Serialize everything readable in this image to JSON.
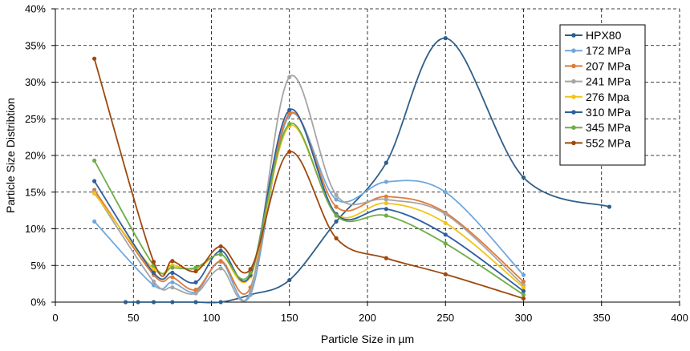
{
  "chart_data": {
    "type": "line",
    "title": "",
    "xlabel": "Particle Size in µm",
    "ylabel": "Particle Size Distribtion",
    "xlim": [
      0,
      400
    ],
    "ylim": [
      0,
      0.4
    ],
    "x_ticks": [
      0,
      50,
      100,
      150,
      200,
      250,
      300,
      350,
      400
    ],
    "x_tick_labels": [
      "0",
      "50",
      "100",
      "150",
      "200",
      "250",
      "300",
      "350",
      "400"
    ],
    "y_ticks": [
      0,
      0.05,
      0.1,
      0.15,
      0.2,
      0.25,
      0.3,
      0.35,
      0.4
    ],
    "y_tick_labels": [
      "0%",
      "5%",
      "10%",
      "15%",
      "20%",
      "25%",
      "30%",
      "35%",
      "40%"
    ],
    "grid": true,
    "legend_position": "top-right",
    "series": [
      {
        "name": "HPX80",
        "color": "#2e5f8a",
        "x": [
          45,
          53,
          63,
          75,
          90,
          106,
          125,
          150,
          180,
          212,
          250,
          300,
          355
        ],
        "y": [
          0,
          0,
          0,
          0,
          0,
          0,
          0.01,
          0.03,
          0.11,
          0.19,
          0.36,
          0.17,
          0.13
        ]
      },
      {
        "name": "172 MPa",
        "color": "#6fa8dc",
        "x": [
          25,
          63,
          75,
          90,
          106,
          125,
          150,
          180,
          212,
          250,
          300
        ],
        "y": [
          0.11,
          0.023,
          0.027,
          0.014,
          0.055,
          0.01,
          0.255,
          0.14,
          0.164,
          0.15,
          0.037
        ]
      },
      {
        "name": "207 MPa",
        "color": "#e07b39",
        "x": [
          25,
          63,
          75,
          90,
          106,
          125,
          150,
          180,
          212,
          250,
          300
        ],
        "y": [
          0.153,
          0.037,
          0.034,
          0.017,
          0.056,
          0.02,
          0.257,
          0.13,
          0.144,
          0.122,
          0.028
        ]
      },
      {
        "name": "241 MPa",
        "color": "#a5a5a5",
        "x": [
          25,
          63,
          75,
          90,
          106,
          125,
          150,
          180,
          212,
          250,
          300
        ],
        "y": [
          0.15,
          0.028,
          0.02,
          0.012,
          0.046,
          0.015,
          0.307,
          0.146,
          0.14,
          0.12,
          0.023
        ]
      },
      {
        "name": "276 Mpa",
        "color": "#f2c416",
        "x": [
          25,
          63,
          75,
          90,
          106,
          125,
          150,
          180,
          212,
          250,
          300
        ],
        "y": [
          0.148,
          0.045,
          0.05,
          0.045,
          0.065,
          0.035,
          0.24,
          0.12,
          0.135,
          0.108,
          0.02
        ]
      },
      {
        "name": "310 MPa",
        "color": "#2f5f9e",
        "x": [
          25,
          63,
          75,
          90,
          106,
          125,
          150,
          180,
          212,
          250,
          300
        ],
        "y": [
          0.165,
          0.04,
          0.04,
          0.027,
          0.07,
          0.037,
          0.262,
          0.12,
          0.127,
          0.092,
          0.015
        ]
      },
      {
        "name": "345 MPa",
        "color": "#70ad47",
        "x": [
          25,
          63,
          75,
          90,
          106,
          125,
          150,
          180,
          212,
          250,
          300
        ],
        "y": [
          0.193,
          0.05,
          0.047,
          0.047,
          0.065,
          0.04,
          0.243,
          0.118,
          0.118,
          0.08,
          0.01
        ]
      },
      {
        "name": "552 MPa",
        "color": "#9e480e",
        "x": [
          25,
          63,
          75,
          90,
          106,
          125,
          150,
          180,
          212,
          250,
          300
        ],
        "y": [
          0.332,
          0.055,
          0.056,
          0.042,
          0.076,
          0.045,
          0.205,
          0.087,
          0.06,
          0.038,
          0.005
        ]
      }
    ]
  }
}
